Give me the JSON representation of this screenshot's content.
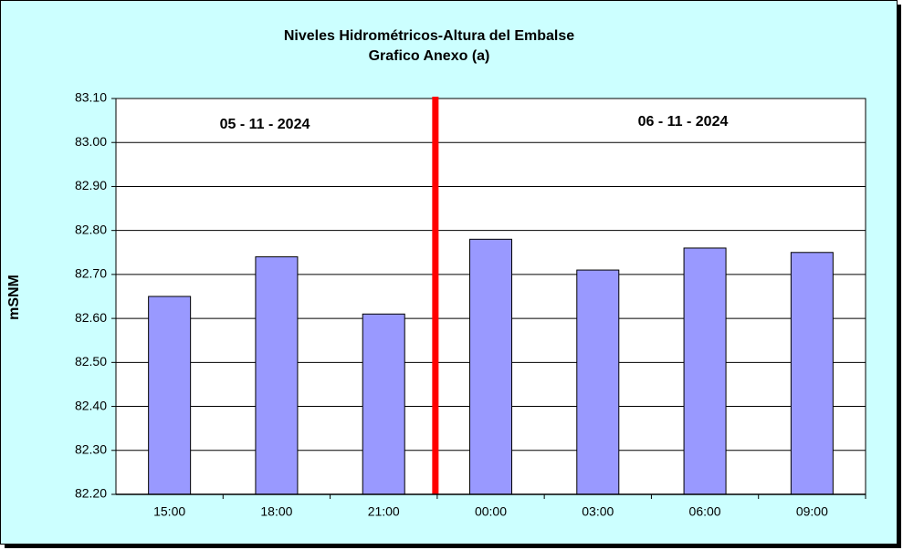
{
  "chart_data": {
    "type": "bar",
    "title": "Niveles Hidrométricos-Altura del Embalse",
    "subtitle": "Grafico Anexo (a)",
    "y_label": "mSNM",
    "annotations": [
      "05 - 11 - 2024",
      "06 - 11 - 2024"
    ],
    "categories": [
      "15:00",
      "18:00",
      "21:00",
      "00:00",
      "03:00",
      "06:00",
      "09:00"
    ],
    "values": [
      82.65,
      82.74,
      82.61,
      82.78,
      82.71,
      82.76,
      82.75
    ],
    "color": "#9999ff",
    "ylim": [
      82.2,
      83.1
    ],
    "yticks": [
      {
        "value": 82.2,
        "label": "82.20"
      },
      {
        "value": 82.3,
        "label": "82.30"
      },
      {
        "value": 82.4,
        "label": "82.40"
      },
      {
        "value": 82.5,
        "label": "82.50"
      },
      {
        "value": 82.6,
        "label": "82.60"
      },
      {
        "value": 82.7,
        "label": "82.70"
      },
      {
        "value": 82.8,
        "label": "82.80"
      },
      {
        "value": 82.9,
        "label": "82.90"
      },
      {
        "value": 83.0,
        "label": "83.00"
      },
      {
        "value": 83.1,
        "label": "83.10"
      }
    ],
    "grid": true
  }
}
